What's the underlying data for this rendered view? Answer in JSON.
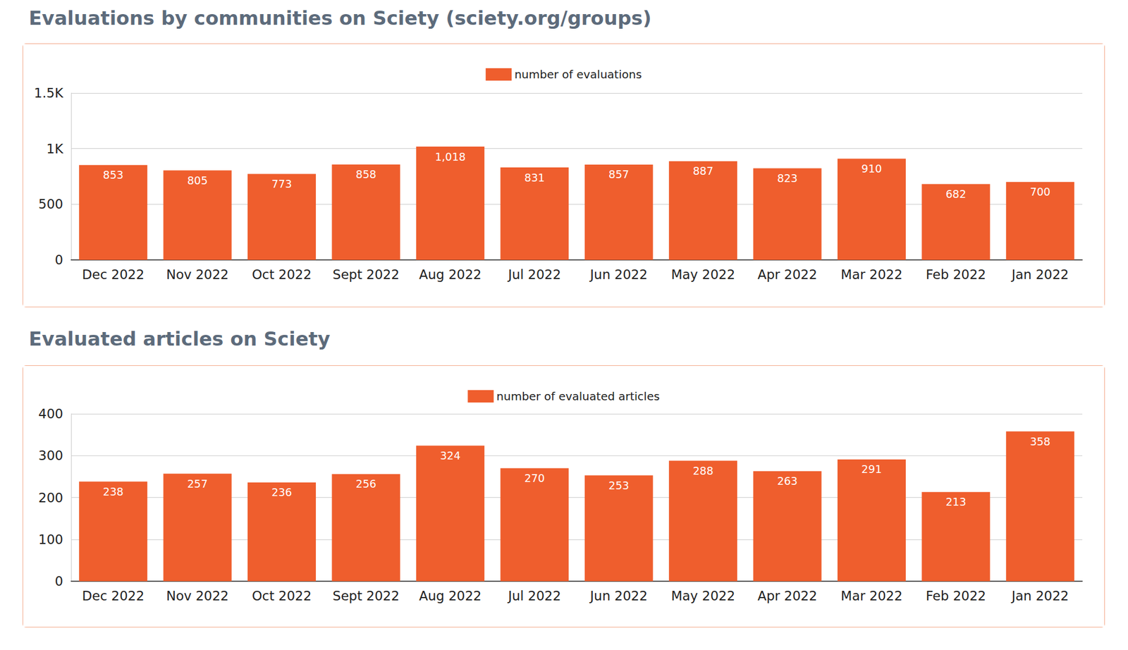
{
  "chart_data": [
    {
      "type": "bar",
      "title": "Evaluations by communities on Sciety (sciety.org/groups)",
      "categories": [
        "Dec 2022",
        "Nov 2022",
        "Oct 2022",
        "Sept 2022",
        "Aug 2022",
        "Jul 2022",
        "Jun 2022",
        "May 2022",
        "Apr 2022",
        "Mar 2022",
        "Feb 2022",
        "Jan 2022"
      ],
      "series": [
        {
          "name": "number of evaluations",
          "color": "#ef5e2d",
          "values": [
            853,
            805,
            773,
            858,
            1018,
            831,
            857,
            887,
            823,
            910,
            682,
            700
          ],
          "value_labels": [
            "853",
            "805",
            "773",
            "858",
            "1,018",
            "831",
            "857",
            "887",
            "823",
            "910",
            "682",
            "700"
          ]
        }
      ],
      "ylim": [
        0,
        1500
      ],
      "yticks": [
        0,
        500,
        {
          "value": 1000,
          "label": "1K"
        },
        {
          "value": 1500,
          "label": "1.5K"
        }
      ],
      "grid": true,
      "data_labels": true,
      "legend": "top"
    },
    {
      "type": "bar",
      "title": "Evaluated articles on Sciety",
      "categories": [
        "Dec 2022",
        "Nov 2022",
        "Oct 2022",
        "Sept 2022",
        "Aug 2022",
        "Jul 2022",
        "Jun 2022",
        "May 2022",
        "Apr 2022",
        "Mar 2022",
        "Feb 2022",
        "Jan 2022"
      ],
      "series": [
        {
          "name": "number of evaluated articles",
          "color": "#ef5e2d",
          "values": [
            238,
            257,
            236,
            256,
            324,
            270,
            253,
            288,
            263,
            291,
            213,
            358
          ]
        }
      ],
      "ylim": [
        0,
        400
      ],
      "yticks": [
        0,
        100,
        200,
        300,
        400
      ],
      "grid": true,
      "data_labels": true,
      "legend": "top"
    }
  ]
}
